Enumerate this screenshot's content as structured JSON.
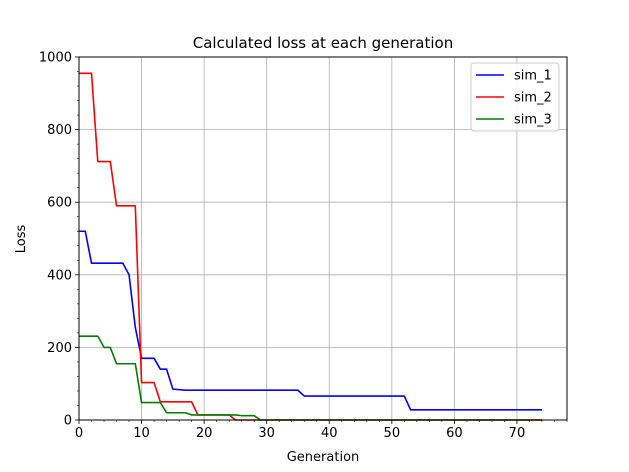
{
  "chart_data": {
    "type": "line",
    "title": "Calculated loss at each generation",
    "xlabel": "Generation",
    "ylabel": "Loss",
    "xlim": [
      0,
      78
    ],
    "ylim": [
      0,
      1000
    ],
    "xticks": [
      0,
      10,
      20,
      30,
      40,
      50,
      60,
      70
    ],
    "yticks": [
      0,
      200,
      400,
      600,
      800,
      1000
    ],
    "grid": true,
    "legend": "top-right",
    "series": [
      {
        "name": "sim_1",
        "color": "#0000ff",
        "points": [
          [
            0,
            520
          ],
          [
            1,
            520
          ],
          [
            2,
            432
          ],
          [
            7,
            432
          ],
          [
            8,
            400
          ],
          [
            9,
            255
          ],
          [
            10,
            170
          ],
          [
            12,
            170
          ],
          [
            13,
            140
          ],
          [
            14,
            140
          ],
          [
            15,
            85
          ],
          [
            17,
            82
          ],
          [
            35,
            82
          ],
          [
            36,
            66
          ],
          [
            52,
            66
          ],
          [
            53,
            28
          ],
          [
            74,
            28
          ]
        ]
      },
      {
        "name": "sim_2",
        "color": "#ff0000",
        "points": [
          [
            0,
            955
          ],
          [
            2,
            955
          ],
          [
            3,
            712
          ],
          [
            5,
            712
          ],
          [
            6,
            590
          ],
          [
            9,
            590
          ],
          [
            10,
            103
          ],
          [
            12,
            103
          ],
          [
            13,
            50
          ],
          [
            18,
            50
          ],
          [
            19,
            14
          ],
          [
            24,
            14
          ],
          [
            25,
            0
          ],
          [
            74,
            0
          ]
        ]
      },
      {
        "name": "sim_3",
        "color": "#008000",
        "points": [
          [
            0,
            231
          ],
          [
            3,
            231
          ],
          [
            4,
            200
          ],
          [
            5,
            200
          ],
          [
            6,
            155
          ],
          [
            9,
            155
          ],
          [
            10,
            48
          ],
          [
            13,
            48
          ],
          [
            14,
            20
          ],
          [
            17,
            20
          ],
          [
            18,
            14
          ],
          [
            25,
            14
          ],
          [
            26,
            12
          ],
          [
            28,
            12
          ],
          [
            29,
            0
          ],
          [
            74,
            0
          ]
        ]
      }
    ]
  }
}
